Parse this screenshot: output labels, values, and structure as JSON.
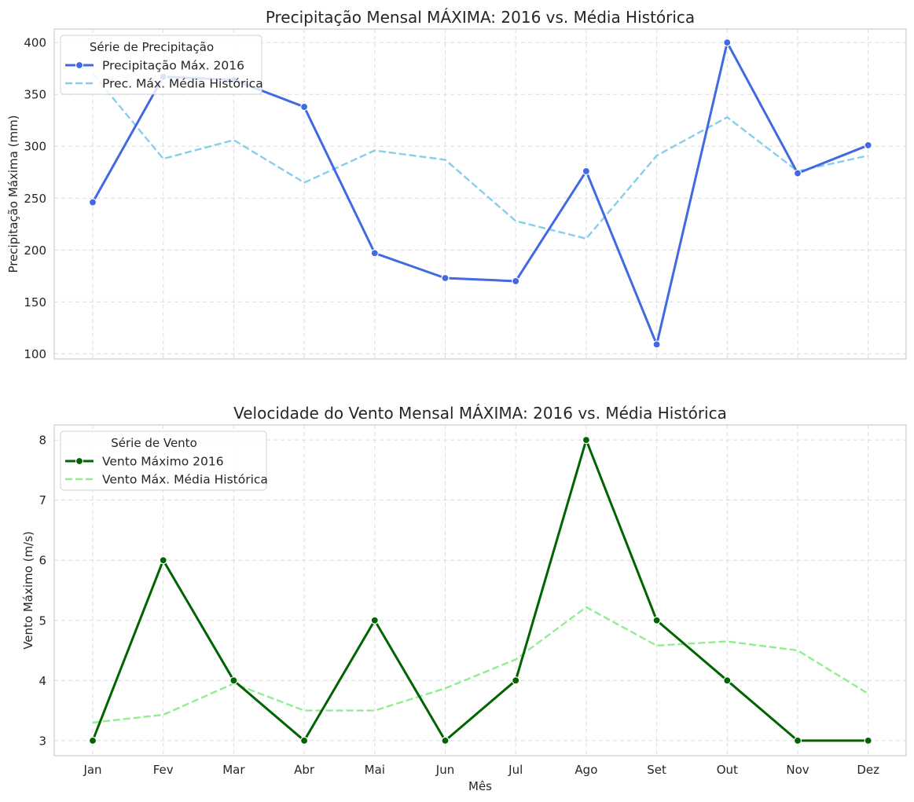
{
  "chart_data": [
    {
      "type": "line",
      "title": "Precipitação Mensal MÁXIMA: 2016 vs. Média Histórica",
      "xlabel": "",
      "ylabel": "Precipitação Máxima (mm)",
      "categories": [
        "Jan",
        "Fev",
        "Mar",
        "Abr",
        "Mai",
        "Jun",
        "Jul",
        "Ago",
        "Set",
        "Out",
        "Nov",
        "Dez"
      ],
      "yticks": [
        100,
        150,
        200,
        250,
        300,
        350,
        400
      ],
      "ylim": [
        95,
        413
      ],
      "grid": true,
      "legend": {
        "title": "Série de Precipitação",
        "position": "top-left"
      },
      "series": [
        {
          "name": "Precipitação Máx. 2016",
          "color": "#4169E1",
          "style": "solid",
          "markers": true,
          "values": [
            246,
            367,
            364,
            338,
            197,
            173,
            170,
            276,
            109,
            400,
            274,
            301
          ]
        },
        {
          "name": "Prec. Máx. Média Histórica",
          "color": "#87CEEB",
          "style": "dashed",
          "markers": false,
          "values": [
            370,
            288,
            306,
            265,
            296,
            287,
            228,
            211,
            291,
            328,
            276,
            291
          ]
        }
      ]
    },
    {
      "type": "line",
      "title": "Velocidade do Vento Mensal MÁXIMA: 2016 vs. Média Histórica",
      "xlabel": "Mês",
      "ylabel": "Vento Máximo (m/s)",
      "categories": [
        "Jan",
        "Fev",
        "Mar",
        "Abr",
        "Mai",
        "Jun",
        "Jul",
        "Ago",
        "Set",
        "Out",
        "Nov",
        "Dez"
      ],
      "yticks": [
        3,
        4,
        5,
        6,
        7,
        8
      ],
      "ylim": [
        2.75,
        8.25
      ],
      "grid": true,
      "legend": {
        "title": "Série de Vento",
        "position": "top-left"
      },
      "series": [
        {
          "name": "Vento Máximo 2016",
          "color": "#006400",
          "style": "solid",
          "markers": true,
          "values": [
            3,
            6,
            4,
            3,
            5,
            3,
            4,
            8,
            5,
            4,
            3,
            3
          ]
        },
        {
          "name": "Vento Máx. Média Histórica",
          "color": "#90EE90",
          "style": "dashed",
          "markers": false,
          "values": [
            3.3,
            3.43,
            3.95,
            3.5,
            3.5,
            3.87,
            4.35,
            5.22,
            4.58,
            4.65,
            4.5,
            3.78
          ]
        }
      ]
    }
  ]
}
